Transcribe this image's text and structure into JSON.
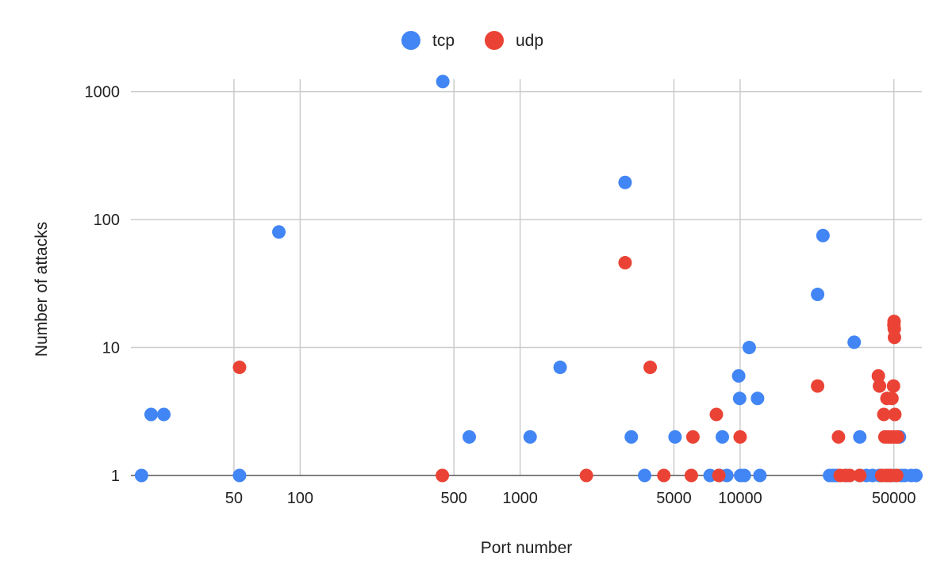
{
  "chart_data": {
    "type": "scatter",
    "title": "",
    "xlabel": "Port number",
    "ylabel": "Number of attacks",
    "x_scale": "log",
    "y_scale": "log",
    "xlim": [
      17,
      67000
    ],
    "ylim": [
      1,
      1250
    ],
    "x_ticks": [
      {
        "value": 50,
        "label": "50"
      },
      {
        "value": 100,
        "label": "100"
      },
      {
        "value": 500,
        "label": "500"
      },
      {
        "value": 1000,
        "label": "1000"
      },
      {
        "value": 5000,
        "label": "5000"
      },
      {
        "value": 10000,
        "label": "10000"
      },
      {
        "value": 50000,
        "label": "50000"
      }
    ],
    "y_ticks": [
      {
        "value": 1,
        "label": "1"
      },
      {
        "value": 10,
        "label": "10"
      },
      {
        "value": 100,
        "label": "100"
      },
      {
        "value": 1000,
        "label": "1000"
      }
    ],
    "grid": true,
    "legend_position": "top",
    "series": [
      {
        "name": "tcp",
        "color": "#4285f4",
        "points": [
          [
            19,
            1
          ],
          [
            21,
            3
          ],
          [
            24,
            3
          ],
          [
            53,
            1
          ],
          [
            80,
            80
          ],
          [
            445,
            1200
          ],
          [
            587,
            2
          ],
          [
            1110,
            2
          ],
          [
            1520,
            7
          ],
          [
            3000,
            195
          ],
          [
            3200,
            2
          ],
          [
            3680,
            1
          ],
          [
            5060,
            2
          ],
          [
            7300,
            1
          ],
          [
            8050,
            1
          ],
          [
            8300,
            2
          ],
          [
            8700,
            1
          ],
          [
            9850,
            6
          ],
          [
            9950,
            4
          ],
          [
            10050,
            1
          ],
          [
            10450,
            1
          ],
          [
            11000,
            10
          ],
          [
            12000,
            4
          ],
          [
            12300,
            1
          ],
          [
            22500,
            26
          ],
          [
            23800,
            75
          ],
          [
            25500,
            1
          ],
          [
            26500,
            1
          ],
          [
            27500,
            1
          ],
          [
            30500,
            1
          ],
          [
            33000,
            11
          ],
          [
            35000,
            2
          ],
          [
            35000,
            1
          ],
          [
            37500,
            1
          ],
          [
            40000,
            1
          ],
          [
            43000,
            1
          ],
          [
            46000,
            1
          ],
          [
            49000,
            1
          ],
          [
            51000,
            1
          ],
          [
            53000,
            2
          ],
          [
            54000,
            1
          ],
          [
            56000,
            1
          ],
          [
            60000,
            1
          ],
          [
            63000,
            1
          ]
        ]
      },
      {
        "name": "udp",
        "color": "#ea4335",
        "points": [
          [
            53,
            7
          ],
          [
            443,
            1
          ],
          [
            2000,
            1
          ],
          [
            3000,
            46
          ],
          [
            3900,
            7
          ],
          [
            4500,
            1
          ],
          [
            6000,
            1
          ],
          [
            6100,
            2
          ],
          [
            7800,
            3
          ],
          [
            8000,
            1
          ],
          [
            10000,
            2
          ],
          [
            22500,
            5
          ],
          [
            28000,
            2
          ],
          [
            28500,
            1
          ],
          [
            30000,
            1
          ],
          [
            31500,
            1
          ],
          [
            35000,
            1
          ],
          [
            42500,
            6
          ],
          [
            43000,
            5
          ],
          [
            44000,
            1
          ],
          [
            45000,
            3
          ],
          [
            45500,
            2
          ],
          [
            46000,
            1
          ],
          [
            46500,
            4
          ],
          [
            47000,
            2
          ],
          [
            47500,
            1
          ],
          [
            48000,
            2
          ],
          [
            48500,
            1
          ],
          [
            49000,
            4
          ],
          [
            49500,
            2
          ],
          [
            49800,
            5
          ],
          [
            50000,
            15
          ],
          [
            50100,
            16
          ],
          [
            50200,
            14
          ],
          [
            50300,
            12
          ],
          [
            50500,
            3
          ],
          [
            51000,
            2
          ],
          [
            51500,
            1
          ],
          [
            52000,
            2
          ]
        ]
      }
    ]
  }
}
